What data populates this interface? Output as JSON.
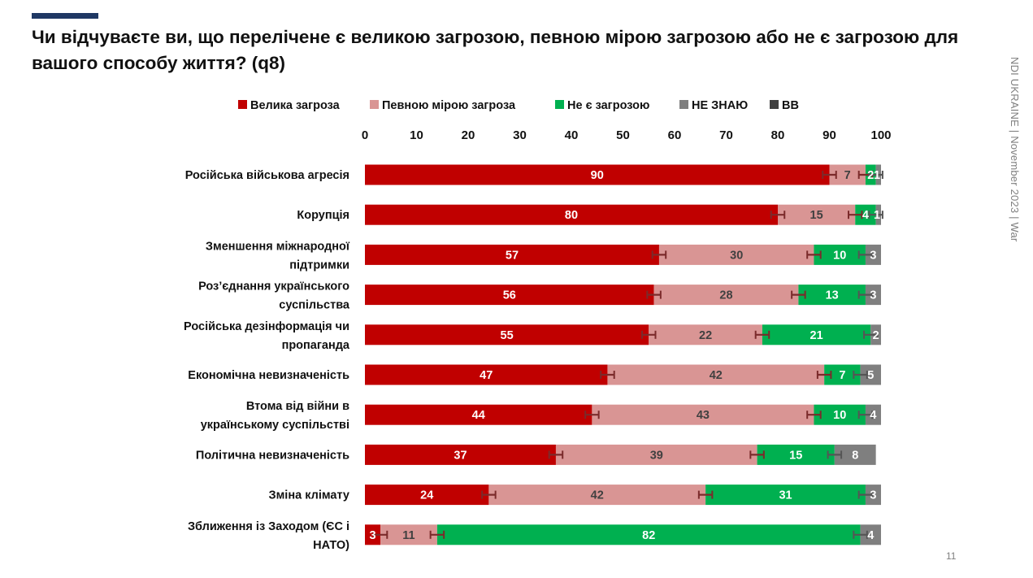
{
  "slide": {
    "title": "Чи відчуваєте ви, що перелічене є великою загрозою, певною мірою загрозою або не є загрозою для вашого способу життя? (q8)",
    "side_text": "NDI UKRAINE | November 2023 | War",
    "page_number": "11"
  },
  "chart_data": {
    "type": "bar",
    "orientation": "horizontal",
    "stacked": true,
    "title": "Чи відчуваєте ви, що перелічене є великою загрозою, певною мірою загрозою або не є загрозою для вашого способу життя? (q8)",
    "xlim": [
      0,
      100
    ],
    "ticks": [
      0,
      10,
      20,
      30,
      40,
      50,
      60,
      70,
      80,
      90,
      100
    ],
    "grid": false,
    "legend_position": "top",
    "categories": [
      [
        "Російська військова агресія"
      ],
      [
        "Корупція"
      ],
      [
        "Зменшення міжнародної",
        "підтримки"
      ],
      [
        "Роз’єднання українського",
        "суспільства"
      ],
      [
        "Російська дезінформація чи",
        "пропаганда"
      ],
      [
        "Економічна невизначеність"
      ],
      [
        "Втома від війни в",
        "українському суспільстві"
      ],
      [
        "Політична невизначеність"
      ],
      [
        "Зміна клімату"
      ],
      [
        "Зближення із Заходом (ЄС і",
        "НАТО)"
      ]
    ],
    "series": [
      {
        "name": "Велика загроза",
        "color": "#c00000",
        "label_color": "#ffffff",
        "values": [
          90,
          80,
          57,
          56,
          55,
          47,
          44,
          37,
          24,
          3
        ]
      },
      {
        "name": "Певною мірою загроза",
        "color": "#d99594",
        "label_color": "#404040",
        "values": [
          7,
          15,
          30,
          28,
          22,
          42,
          43,
          39,
          42,
          11
        ]
      },
      {
        "name": "Не є загрозою",
        "color": "#00b050",
        "label_color": "#ffffff",
        "values": [
          2,
          4,
          10,
          13,
          21,
          7,
          10,
          15,
          31,
          82
        ]
      },
      {
        "name": "НЕ ЗНАЮ",
        "color": "#7f7f7f",
        "label_color": "#ffffff",
        "values": [
          1,
          1,
          3,
          3,
          2,
          5,
          4,
          8,
          3,
          4
        ]
      },
      {
        "name": "ВВ",
        "color": "#404040",
        "label_color": "#ffffff",
        "values": [
          0,
          0,
          0,
          0,
          0,
          0,
          0,
          0,
          0,
          0
        ]
      }
    ],
    "display_labels": [
      [
        "90",
        "7",
        "2",
        "1",
        ""
      ],
      [
        "80",
        "15",
        "4",
        "1",
        ""
      ],
      [
        "57",
        "30",
        "10",
        "3",
        ""
      ],
      [
        "56",
        "28",
        "13",
        "3",
        ""
      ],
      [
        "55",
        "22",
        "21",
        "2",
        ""
      ],
      [
        "47",
        "42",
        "7",
        "5",
        ""
      ],
      [
        "44",
        "43",
        "10",
        "4",
        ""
      ],
      [
        "37",
        "39",
        "15",
        "8",
        ""
      ],
      [
        "24",
        "42",
        "31",
        "3",
        ""
      ],
      [
        "3",
        "11",
        "82",
        "4",
        ""
      ]
    ],
    "error_bar_half_width": 1.3
  }
}
